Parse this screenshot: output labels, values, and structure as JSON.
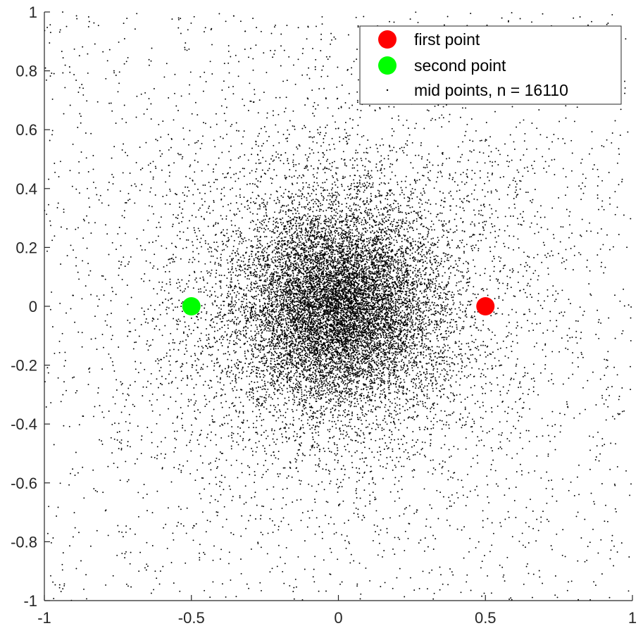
{
  "chart_data": {
    "type": "scatter",
    "title": "",
    "xlabel": "",
    "ylabel": "",
    "xlim": [
      -1,
      1
    ],
    "ylim": [
      -1,
      1
    ],
    "grid": false,
    "legend_location": "top-right",
    "xticks": [
      -1,
      -0.5,
      0,
      0.5,
      1
    ],
    "xtick_labels": [
      "-1",
      "-0.5",
      "0",
      "0.5",
      "1"
    ],
    "yticks": [
      -1,
      -0.8,
      -0.6,
      -0.4,
      -0.2,
      0,
      0.2,
      0.4,
      0.6,
      0.8,
      1
    ],
    "ytick_labels": [
      "-1",
      "-0.8",
      "-0.6",
      "-0.4",
      "-0.2",
      "0",
      "0.2",
      "0.4",
      "0.6",
      "0.8",
      "1"
    ],
    "series": [
      {
        "name": "first point",
        "color": "#ff0000",
        "marker": "filled-circle",
        "points": [
          [
            0.5,
            0
          ]
        ]
      },
      {
        "name": "second point",
        "color": "#00ff00",
        "marker": "filled-circle",
        "points": [
          [
            -0.5,
            0
          ]
        ]
      },
      {
        "name": "mid points, n = 16110",
        "color": "#000000",
        "marker": "dot",
        "n": 16110,
        "distribution": "dense cluster centred near (0, 0), thinning out toward the edges of the [-1, 1] square"
      }
    ]
  }
}
